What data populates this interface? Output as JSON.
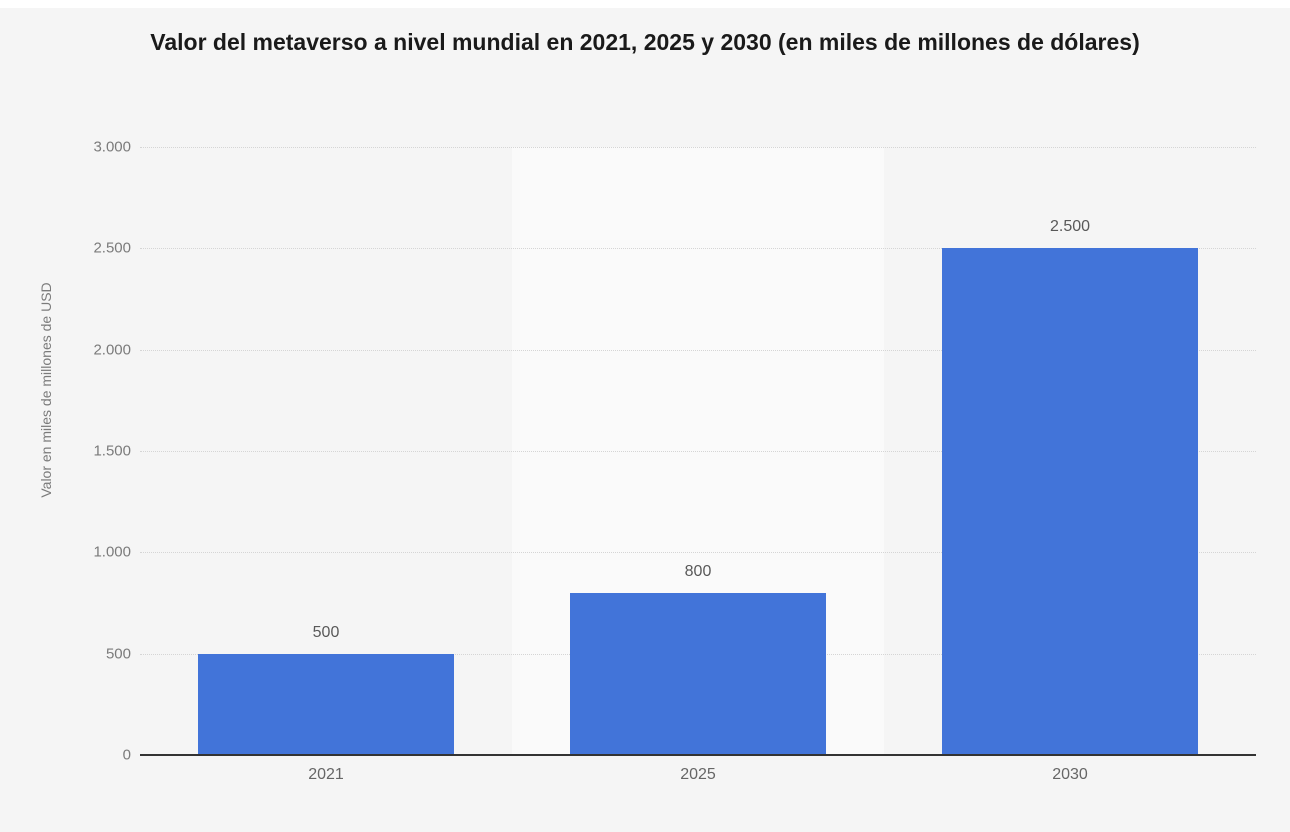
{
  "chart_data": {
    "type": "bar",
    "title": "Valor del metaverso a nivel mundial en 2021, 2025 y 2030 (en miles de millones de dólares)",
    "ylabel": "Valor en miles de millones de USD",
    "xlabel": "",
    "categories": [
      "2021",
      "2025",
      "2030"
    ],
    "values": [
      500,
      800,
      2500
    ],
    "value_labels": [
      "500",
      "800",
      "2.500"
    ],
    "ylim": [
      0,
      3000
    ],
    "yticks": [
      {
        "value": 0,
        "label": "0"
      },
      {
        "value": 500,
        "label": "500"
      },
      {
        "value": 1000,
        "label": "1.000"
      },
      {
        "value": 1500,
        "label": "1.500"
      },
      {
        "value": 2000,
        "label": "2.000"
      },
      {
        "value": 2500,
        "label": "2.500"
      },
      {
        "value": 3000,
        "label": "3.000"
      }
    ],
    "grid": "horizontal-dotted",
    "legend": "none",
    "highlighted_band_index": 1,
    "colors": {
      "bar": "#4274d9",
      "background": "#f5f5f5",
      "band_highlight": "#fafafa",
      "gridline": "#d5d5d5",
      "axis_line": "#333333",
      "tick_label": "#7b7b7b",
      "value_label": "#595959",
      "x_label": "#666666",
      "title": "#1a1a1a"
    }
  }
}
